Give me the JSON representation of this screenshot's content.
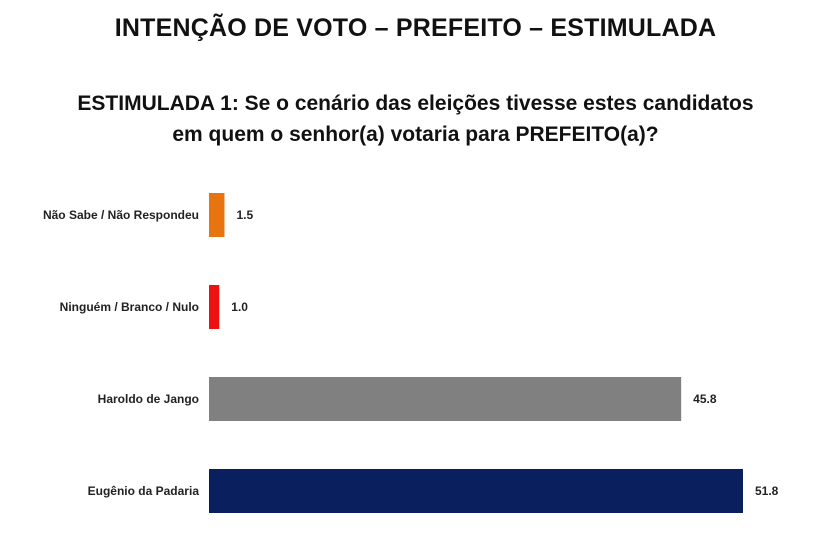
{
  "title": "INTENÇÃO DE VOTO – PREFEITO – ESTIMULADA",
  "subtitle": "ESTIMULADA 1: Se o cenário das eleições tivesse estes candidatos em quem o senhor(a) votaria para PREFEITO(a)?",
  "chart_data": {
    "type": "bar",
    "orientation": "horizontal",
    "categories": [
      "Não Sabe / Não Respondeu",
      "Ninguém / Branco / Nulo",
      "Haroldo de Jango",
      "Eugênio da Padaria"
    ],
    "values": [
      1.5,
      1.0,
      45.8,
      51.8
    ],
    "value_labels": [
      "1.5",
      "1.0",
      "45.8",
      "51.8"
    ],
    "colors": [
      "#e8740f",
      "#ee1111",
      "#808080",
      "#0a1f5e"
    ],
    "xlim": [
      0,
      51.8
    ],
    "grid": false,
    "legend": "none"
  }
}
